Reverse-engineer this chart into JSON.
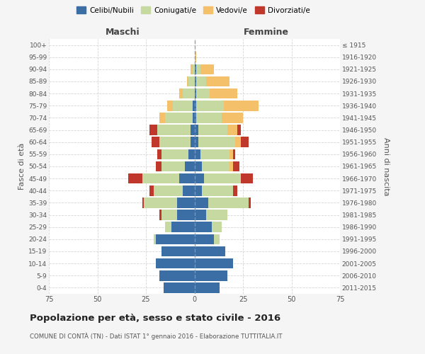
{
  "age_groups": [
    "0-4",
    "5-9",
    "10-14",
    "15-19",
    "20-24",
    "25-29",
    "30-34",
    "35-39",
    "40-44",
    "45-49",
    "50-54",
    "55-59",
    "60-64",
    "65-69",
    "70-74",
    "75-79",
    "80-84",
    "85-89",
    "90-94",
    "95-99",
    "100+"
  ],
  "birth_years": [
    "2011-2015",
    "2006-2010",
    "2001-2005",
    "1996-2000",
    "1991-1995",
    "1986-1990",
    "1981-1985",
    "1976-1980",
    "1971-1975",
    "1966-1970",
    "1961-1965",
    "1956-1960",
    "1951-1955",
    "1946-1950",
    "1941-1945",
    "1936-1940",
    "1931-1935",
    "1926-1930",
    "1921-1925",
    "1916-1920",
    "≤ 1915"
  ],
  "males": {
    "celibi": [
      16,
      18,
      20,
      17,
      20,
      12,
      9,
      9,
      6,
      8,
      5,
      3,
      2,
      2,
      1,
      1,
      0,
      0,
      0,
      0,
      0
    ],
    "coniugati": [
      0,
      0,
      0,
      0,
      1,
      3,
      8,
      17,
      15,
      19,
      12,
      14,
      16,
      17,
      14,
      10,
      6,
      3,
      1,
      0,
      0
    ],
    "vedovi": [
      0,
      0,
      0,
      0,
      0,
      0,
      0,
      0,
      0,
      0,
      0,
      0,
      0,
      0,
      3,
      3,
      2,
      1,
      1,
      0,
      0
    ],
    "divorziati": [
      0,
      0,
      0,
      0,
      0,
      0,
      1,
      1,
      2,
      7,
      3,
      2,
      4,
      4,
      0,
      0,
      0,
      0,
      0,
      0,
      0
    ]
  },
  "females": {
    "nubili": [
      13,
      17,
      20,
      16,
      10,
      9,
      6,
      7,
      4,
      5,
      4,
      3,
      2,
      2,
      1,
      1,
      1,
      1,
      1,
      0,
      0
    ],
    "coniugate": [
      0,
      0,
      0,
      0,
      3,
      5,
      11,
      21,
      16,
      19,
      14,
      15,
      19,
      15,
      13,
      14,
      7,
      5,
      2,
      0,
      0
    ],
    "vedove": [
      0,
      0,
      0,
      0,
      0,
      0,
      0,
      0,
      0,
      0,
      2,
      2,
      3,
      5,
      11,
      18,
      14,
      12,
      7,
      1,
      0
    ],
    "divorziate": [
      0,
      0,
      0,
      0,
      0,
      0,
      0,
      1,
      2,
      6,
      3,
      1,
      4,
      2,
      0,
      0,
      0,
      0,
      0,
      0,
      0
    ]
  },
  "colors": {
    "celibi": "#3a6ea5",
    "coniugati": "#c5d9a0",
    "vedovi": "#f5c06a",
    "divorziati": "#c0382b"
  },
  "title_main": "Popolazione per età, sesso e stato civile - 2016",
  "title_sub": "COMUNE DI CONTÀ (TN) - Dati ISTAT 1° gennaio 2016 - Elaborazione TUTTITALIA.IT",
  "xlabel_left": "Maschi",
  "xlabel_right": "Femmine",
  "ylabel_left": "Fasce di età",
  "ylabel_right": "Anni di nascita",
  "legend_labels": [
    "Celibi/Nubili",
    "Coniugati/e",
    "Vedovi/e",
    "Divorziati/e"
  ],
  "xlim": 75,
  "background_color": "#f5f5f5",
  "plot_background": "#ffffff",
  "grid_color": "#cccccc"
}
